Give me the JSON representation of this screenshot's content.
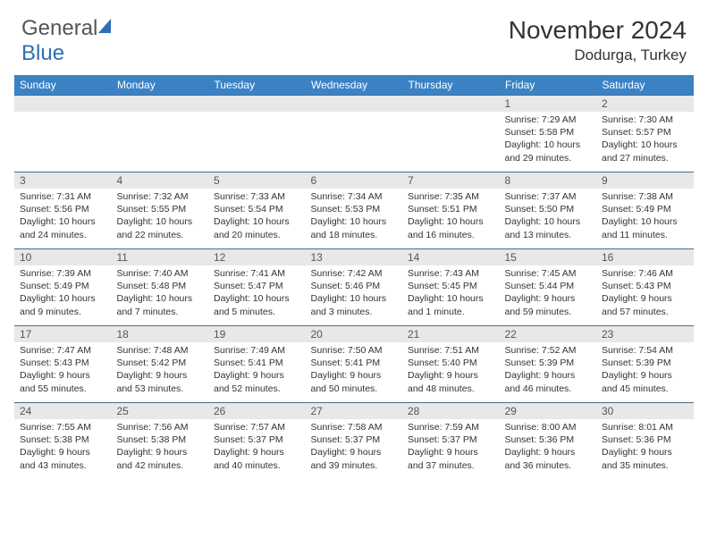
{
  "logo": {
    "textGray": "General",
    "textBlue": "Blue"
  },
  "header": {
    "title": "November 2024",
    "location": "Dodurga, Turkey"
  },
  "colors": {
    "headerBar": "#3b82c4",
    "headerText": "#ffffff",
    "dayNumBg": "#e8e8e8",
    "rowBorder": "#4a6a8a",
    "logoBlue": "#2f6fb3",
    "logoGray": "#555555"
  },
  "weekdays": [
    "Sunday",
    "Monday",
    "Tuesday",
    "Wednesday",
    "Thursday",
    "Friday",
    "Saturday"
  ],
  "weeks": [
    [
      null,
      null,
      null,
      null,
      null,
      {
        "n": "1",
        "sr": "7:29 AM",
        "ss": "5:58 PM",
        "dl": "10 hours and 29 minutes."
      },
      {
        "n": "2",
        "sr": "7:30 AM",
        "ss": "5:57 PM",
        "dl": "10 hours and 27 minutes."
      }
    ],
    [
      {
        "n": "3",
        "sr": "7:31 AM",
        "ss": "5:56 PM",
        "dl": "10 hours and 24 minutes."
      },
      {
        "n": "4",
        "sr": "7:32 AM",
        "ss": "5:55 PM",
        "dl": "10 hours and 22 minutes."
      },
      {
        "n": "5",
        "sr": "7:33 AM",
        "ss": "5:54 PM",
        "dl": "10 hours and 20 minutes."
      },
      {
        "n": "6",
        "sr": "7:34 AM",
        "ss": "5:53 PM",
        "dl": "10 hours and 18 minutes."
      },
      {
        "n": "7",
        "sr": "7:35 AM",
        "ss": "5:51 PM",
        "dl": "10 hours and 16 minutes."
      },
      {
        "n": "8",
        "sr": "7:37 AM",
        "ss": "5:50 PM",
        "dl": "10 hours and 13 minutes."
      },
      {
        "n": "9",
        "sr": "7:38 AM",
        "ss": "5:49 PM",
        "dl": "10 hours and 11 minutes."
      }
    ],
    [
      {
        "n": "10",
        "sr": "7:39 AM",
        "ss": "5:49 PM",
        "dl": "10 hours and 9 minutes."
      },
      {
        "n": "11",
        "sr": "7:40 AM",
        "ss": "5:48 PM",
        "dl": "10 hours and 7 minutes."
      },
      {
        "n": "12",
        "sr": "7:41 AM",
        "ss": "5:47 PM",
        "dl": "10 hours and 5 minutes."
      },
      {
        "n": "13",
        "sr": "7:42 AM",
        "ss": "5:46 PM",
        "dl": "10 hours and 3 minutes."
      },
      {
        "n": "14",
        "sr": "7:43 AM",
        "ss": "5:45 PM",
        "dl": "10 hours and 1 minute."
      },
      {
        "n": "15",
        "sr": "7:45 AM",
        "ss": "5:44 PM",
        "dl": "9 hours and 59 minutes."
      },
      {
        "n": "16",
        "sr": "7:46 AM",
        "ss": "5:43 PM",
        "dl": "9 hours and 57 minutes."
      }
    ],
    [
      {
        "n": "17",
        "sr": "7:47 AM",
        "ss": "5:43 PM",
        "dl": "9 hours and 55 minutes."
      },
      {
        "n": "18",
        "sr": "7:48 AM",
        "ss": "5:42 PM",
        "dl": "9 hours and 53 minutes."
      },
      {
        "n": "19",
        "sr": "7:49 AM",
        "ss": "5:41 PM",
        "dl": "9 hours and 52 minutes."
      },
      {
        "n": "20",
        "sr": "7:50 AM",
        "ss": "5:41 PM",
        "dl": "9 hours and 50 minutes."
      },
      {
        "n": "21",
        "sr": "7:51 AM",
        "ss": "5:40 PM",
        "dl": "9 hours and 48 minutes."
      },
      {
        "n": "22",
        "sr": "7:52 AM",
        "ss": "5:39 PM",
        "dl": "9 hours and 46 minutes."
      },
      {
        "n": "23",
        "sr": "7:54 AM",
        "ss": "5:39 PM",
        "dl": "9 hours and 45 minutes."
      }
    ],
    [
      {
        "n": "24",
        "sr": "7:55 AM",
        "ss": "5:38 PM",
        "dl": "9 hours and 43 minutes."
      },
      {
        "n": "25",
        "sr": "7:56 AM",
        "ss": "5:38 PM",
        "dl": "9 hours and 42 minutes."
      },
      {
        "n": "26",
        "sr": "7:57 AM",
        "ss": "5:37 PM",
        "dl": "9 hours and 40 minutes."
      },
      {
        "n": "27",
        "sr": "7:58 AM",
        "ss": "5:37 PM",
        "dl": "9 hours and 39 minutes."
      },
      {
        "n": "28",
        "sr": "7:59 AM",
        "ss": "5:37 PM",
        "dl": "9 hours and 37 minutes."
      },
      {
        "n": "29",
        "sr": "8:00 AM",
        "ss": "5:36 PM",
        "dl": "9 hours and 36 minutes."
      },
      {
        "n": "30",
        "sr": "8:01 AM",
        "ss": "5:36 PM",
        "dl": "9 hours and 35 minutes."
      }
    ]
  ],
  "labels": {
    "sunrise": "Sunrise:",
    "sunset": "Sunset:",
    "daylight": "Daylight:"
  }
}
